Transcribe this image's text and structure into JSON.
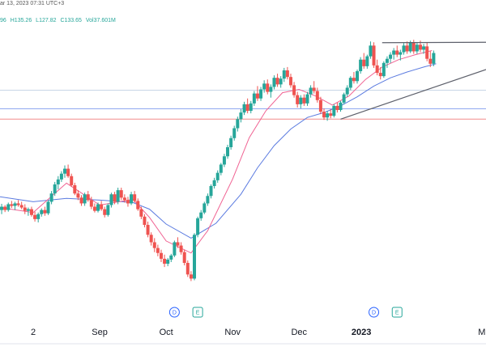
{
  "header": {
    "timestamp": "ar 13, 2023 07:31 UTC+3",
    "ohlc": {
      "open": "96",
      "high": "H135.26",
      "low": "L127.82",
      "close": "C133.65",
      "volume": "Vol37.601M"
    }
  },
  "colors": {
    "up": "#26a69a",
    "down": "#ef5350",
    "ma_fast": "#f06292",
    "ma_slow": "#5b7be0",
    "h_line_blue": "#90a8f0",
    "h_line_red": "#f28b8b",
    "h_line_light": "#c8d6e6",
    "trendline": "#5d606b",
    "event_blue": "#2962ff",
    "event_green": "#26a69a"
  },
  "chart_data": {
    "type": "candlestick",
    "x_labels": [
      "2",
      "Sep",
      "Oct",
      "Nov",
      "Dec",
      "2023",
      "M"
    ],
    "x_label_bold_index": 5,
    "x_label_positions": [
      0.4,
      1.2,
      2.0,
      2.8,
      3.6,
      4.35,
      5.8
    ],
    "y_range": [
      75,
      140
    ],
    "horizontal_lines": [
      {
        "value": 126.0,
        "color_key": "h_line_light"
      },
      {
        "value": 121.5,
        "color_key": "h_line_blue"
      },
      {
        "value": 119.0,
        "color_key": "h_line_red"
      }
    ],
    "trendlines": [
      {
        "from": [
          4.6,
          137.5
        ],
        "to": [
          5.85,
          137.6
        ]
      },
      {
        "from": [
          4.1,
          119.0
        ],
        "to": [
          5.85,
          131.0
        ]
      }
    ],
    "events": [
      {
        "x": 2.1,
        "label": "D",
        "color_key": "event_blue"
      },
      {
        "x": 2.38,
        "label": "E",
        "color_key": "event_green"
      },
      {
        "x": 4.5,
        "label": "D",
        "color_key": "event_blue"
      },
      {
        "x": 4.78,
        "label": "E",
        "color_key": "event_green"
      }
    ],
    "candles": [
      [
        0.02,
        97,
        98.5,
        96,
        97.8
      ],
      [
        0.06,
        97.8,
        98.2,
        96.5,
        97
      ],
      [
        0.1,
        97,
        98.8,
        96.6,
        98.4
      ],
      [
        0.14,
        98.4,
        99.2,
        97.5,
        98
      ],
      [
        0.18,
        98,
        99,
        97,
        98.6
      ],
      [
        0.22,
        98.6,
        99.4,
        97.8,
        98.2
      ],
      [
        0.26,
        98.2,
        99,
        97.2,
        97.6
      ],
      [
        0.3,
        97.6,
        98.4,
        96,
        96.8
      ],
      [
        0.34,
        96.8,
        97.6,
        95.6,
        97.2
      ],
      [
        0.38,
        97.2,
        97.8,
        95.4,
        95.8
      ],
      [
        0.42,
        95.8,
        96.6,
        94.2,
        94.8
      ],
      [
        0.46,
        94.8,
        96.4,
        94,
        96
      ],
      [
        0.5,
        96,
        97.4,
        95.4,
        97
      ],
      [
        0.54,
        97,
        97.8,
        95.6,
        96.2
      ],
      [
        0.58,
        96.2,
        99.4,
        95.8,
        99
      ],
      [
        0.62,
        99,
        101.6,
        98.4,
        101
      ],
      [
        0.66,
        101,
        103.8,
        100.4,
        103.2
      ],
      [
        0.7,
        103.2,
        105.2,
        102,
        104.4
      ],
      [
        0.74,
        104.4,
        106.4,
        103.8,
        105.8
      ],
      [
        0.78,
        105.8,
        107.8,
        104.8,
        107
      ],
      [
        0.82,
        107,
        108,
        104.8,
        105.2
      ],
      [
        0.86,
        105.2,
        105.8,
        102.6,
        103
      ],
      [
        0.9,
        103,
        103.6,
        100.6,
        101
      ],
      [
        0.94,
        101,
        101.8,
        99.4,
        100
      ],
      [
        0.98,
        100,
        100.6,
        98,
        98.6
      ],
      [
        1.02,
        98.6,
        101.2,
        98,
        100.8
      ],
      [
        1.06,
        100.8,
        101.6,
        99,
        99.4
      ],
      [
        1.1,
        99.4,
        100.2,
        97.2,
        97.8
      ],
      [
        1.14,
        97.8,
        98.6,
        96.4,
        96.8
      ],
      [
        1.18,
        96.8,
        98.8,
        96.4,
        98.4
      ],
      [
        1.22,
        98.4,
        99.2,
        96.8,
        97.2
      ],
      [
        1.26,
        97.2,
        97.8,
        95.2,
        95.8
      ],
      [
        1.3,
        95.8,
        98.6,
        95.4,
        98.2
      ],
      [
        1.34,
        98.2,
        101.2,
        97.6,
        100.8
      ],
      [
        1.38,
        100.8,
        101.4,
        98.4,
        99
      ],
      [
        1.42,
        99,
        102.4,
        98.4,
        101.8
      ],
      [
        1.46,
        101.8,
        102.4,
        99.4,
        100
      ],
      [
        1.5,
        100,
        100.8,
        98.8,
        99.4
      ],
      [
        1.54,
        99.4,
        100.2,
        97.8,
        98.6
      ],
      [
        1.58,
        98.6,
        101.4,
        98.2,
        100.8
      ],
      [
        1.62,
        100.8,
        101.6,
        98.8,
        99.2
      ],
      [
        1.66,
        99.2,
        99.8,
        96.8,
        97.2
      ],
      [
        1.7,
        97.2,
        97.8,
        94.8,
        95.4
      ],
      [
        1.74,
        95.4,
        96,
        92.8,
        93.4
      ],
      [
        1.78,
        93.4,
        94.2,
        90.4,
        91
      ],
      [
        1.82,
        91,
        91.6,
        88.4,
        89.2
      ],
      [
        1.86,
        89.2,
        90.2,
        86.8,
        87.8
      ],
      [
        1.9,
        87.8,
        88.6,
        85.8,
        86.6
      ],
      [
        1.94,
        86.6,
        87.4,
        84.4,
        85.2
      ],
      [
        1.98,
        85.2,
        86.2,
        83.2,
        84
      ],
      [
        2.02,
        84,
        85.4,
        83.4,
        85
      ],
      [
        2.06,
        85,
        86.4,
        84.4,
        86
      ],
      [
        2.1,
        86,
        89.6,
        85.6,
        89.2
      ],
      [
        2.14,
        89.2,
        90.4,
        87.8,
        88.4
      ],
      [
        2.18,
        88.4,
        89.2,
        86.2,
        86.8
      ],
      [
        2.22,
        86.8,
        87.4,
        83.6,
        84.2
      ],
      [
        2.26,
        84.2,
        84.8,
        80.8,
        81.4
      ],
      [
        2.3,
        81.4,
        82.2,
        79.8,
        80.4
      ],
      [
        2.34,
        80.4,
        91.4,
        80,
        91
      ]
    ],
    "candles_2": [
      [
        2.38,
        91,
        95.4,
        90.4,
        95
      ],
      [
        2.42,
        95,
        97,
        94.4,
        96.4
      ],
      [
        2.46,
        96.4,
        99,
        96,
        98.6
      ],
      [
        2.5,
        98.6,
        101,
        98,
        100.4
      ],
      [
        2.54,
        100.4,
        103.2,
        99.8,
        102.8
      ],
      [
        2.58,
        102.8,
        104.8,
        102.2,
        104.2
      ],
      [
        2.62,
        104.2,
        106.6,
        103.6,
        106
      ],
      [
        2.66,
        106,
        108.4,
        105.4,
        108
      ],
      [
        2.7,
        108,
        110.6,
        107.4,
        110
      ],
      [
        2.74,
        110,
        112.8,
        109.4,
        112.2
      ],
      [
        2.78,
        112.2,
        115,
        111.6,
        114.4
      ],
      [
        2.82,
        114.4,
        117.4,
        113.8,
        116.8
      ],
      [
        2.86,
        116.8,
        119.6,
        116,
        119
      ],
      [
        2.9,
        119,
        121.4,
        118.2,
        120.6
      ],
      [
        2.94,
        120.6,
        123.2,
        120,
        122.6
      ],
      [
        2.98,
        122.6,
        124,
        120.4,
        121
      ],
      [
        3.02,
        121,
        123.4,
        120.4,
        122.8
      ],
      [
        3.06,
        122.8,
        125.8,
        122.2,
        125.2
      ],
      [
        3.1,
        125.2,
        127,
        123.4,
        124
      ],
      [
        3.14,
        124,
        126.8,
        123.4,
        126.2
      ],
      [
        3.18,
        126.2,
        128.4,
        125.4,
        127.6
      ],
      [
        3.22,
        127.6,
        128.6,
        125,
        125.6
      ],
      [
        3.26,
        125.6,
        127.4,
        124.2,
        126.8
      ],
      [
        3.3,
        126.8,
        129.6,
        126.2,
        129
      ],
      [
        3.34,
        129,
        130,
        126.8,
        127.4
      ],
      [
        3.38,
        127.4,
        129.4,
        126.6,
        128.8
      ],
      [
        3.42,
        128.8,
        131.4,
        128,
        130.8
      ],
      [
        3.46,
        130.8,
        131.6,
        128.6,
        129.2
      ],
      [
        3.5,
        129.2,
        130,
        126.6,
        127.2
      ],
      [
        3.54,
        127.2,
        128,
        124.2,
        124.8
      ],
      [
        3.58,
        124.8,
        125.6,
        121.8,
        122.6
      ],
      [
        3.62,
        122.6,
        124.8,
        121.6,
        124.2
      ],
      [
        3.66,
        124.2,
        125,
        122.2,
        122.8
      ],
      [
        3.7,
        122.8,
        125.6,
        122.2,
        125
      ],
      [
        3.74,
        125,
        127.2,
        124.2,
        126.6
      ],
      [
        3.78,
        126.6,
        128.2,
        125.2,
        125.8
      ],
      [
        3.82,
        125.8,
        126.6,
        123,
        123.6
      ],
      [
        3.86,
        123.6,
        124.4,
        120.2,
        120.8
      ],
      [
        3.9,
        120.8,
        121.6,
        118.8,
        119.4
      ],
      [
        3.94,
        119.4,
        121,
        118.6,
        120.4
      ],
      [
        3.98,
        120.4,
        121.4,
        119.2,
        119.8
      ],
      [
        4.02,
        119.8,
        122.6,
        119.4,
        122.2
      ],
      [
        4.06,
        122.2,
        123,
        120.6,
        121.2
      ],
      [
        4.1,
        121.2,
        123.4,
        120.8,
        123
      ]
    ],
    "candles_3": [
      [
        4.14,
        123,
        125.4,
        122.6,
        125
      ],
      [
        4.18,
        125,
        127.2,
        124.4,
        126.6
      ],
      [
        4.22,
        126.6,
        129.4,
        126,
        129
      ],
      [
        4.26,
        129,
        130.4,
        127.6,
        128.2
      ],
      [
        4.3,
        128.2,
        131,
        127.6,
        130.6
      ],
      [
        4.34,
        130.6,
        134,
        130,
        133.4
      ],
      [
        4.38,
        133.4,
        135,
        131.2,
        131.8
      ],
      [
        4.42,
        131.8,
        134.6,
        131.2,
        134.2
      ],
      [
        4.46,
        134.2,
        137.8,
        133.6,
        136.8
      ],
      [
        4.5,
        136.8,
        137.6,
        131.4,
        132
      ],
      [
        4.54,
        132,
        133.4,
        129.6,
        130.2
      ],
      [
        4.58,
        130.2,
        131.6,
        128.6,
        129.4
      ],
      [
        4.62,
        129.4,
        133,
        129,
        132.6
      ],
      [
        4.66,
        132.6,
        134.2,
        131.4,
        133.6
      ],
      [
        4.7,
        133.6,
        135.2,
        132.6,
        134.6
      ],
      [
        4.74,
        134.6,
        136.2,
        133.4,
        135.6
      ],
      [
        4.78,
        135.6,
        136.8,
        134,
        134.6
      ],
      [
        4.82,
        134.6,
        135.8,
        133.2,
        135.2
      ],
      [
        4.86,
        135.2,
        137.4,
        134.6,
        136.8
      ],
      [
        4.9,
        136.8,
        137.8,
        134.8,
        135.4
      ],
      [
        4.94,
        135.4,
        138,
        135,
        137.6
      ],
      [
        4.98,
        137.6,
        138.2,
        134.8,
        135.4
      ],
      [
        5.02,
        135.4,
        137.6,
        134.8,
        137
      ],
      [
        5.06,
        137,
        138,
        135.2,
        135.8
      ],
      [
        5.1,
        135.8,
        137.2,
        134.8,
        136.6
      ],
      [
        5.14,
        136.6,
        137.6,
        133,
        133.6
      ],
      [
        5.18,
        133.6,
        135.4,
        131.6,
        132.4
      ],
      [
        5.22,
        132.4,
        135.6,
        131.8,
        135
      ]
    ],
    "ma_fast": [
      [
        0.0,
        97.6
      ],
      [
        0.4,
        96.4
      ],
      [
        0.8,
        103.5
      ],
      [
        1.2,
        98.2
      ],
      [
        1.6,
        99.6
      ],
      [
        1.8,
        95.2
      ],
      [
        2.0,
        89.5
      ],
      [
        2.3,
        86.6
      ],
      [
        2.5,
        92
      ],
      [
        2.8,
        104.5
      ],
      [
        3.0,
        114.5
      ],
      [
        3.2,
        121
      ],
      [
        3.4,
        125.4
      ],
      [
        3.6,
        126.2
      ],
      [
        3.8,
        124.6
      ],
      [
        4.0,
        122.4
      ],
      [
        4.2,
        124.6
      ],
      [
        4.4,
        128.6
      ],
      [
        4.6,
        131.6
      ],
      [
        4.8,
        133.4
      ],
      [
        5.0,
        134.6
      ],
      [
        5.2,
        135.6
      ]
    ],
    "ma_slow": [
      [
        0.0,
        100.2
      ],
      [
        0.4,
        99
      ],
      [
        0.8,
        99.8
      ],
      [
        1.2,
        99.4
      ],
      [
        1.6,
        98.8
      ],
      [
        1.8,
        97.2
      ],
      [
        2.0,
        93.6
      ],
      [
        2.3,
        90.2
      ],
      [
        2.6,
        93.8
      ],
      [
        2.9,
        100.8
      ],
      [
        3.1,
        107.2
      ],
      [
        3.3,
        112.6
      ],
      [
        3.5,
        116.6
      ],
      [
        3.7,
        119.4
      ],
      [
        3.9,
        120.6
      ],
      [
        4.1,
        122.2
      ],
      [
        4.3,
        124.4
      ],
      [
        4.5,
        127
      ],
      [
        4.7,
        129
      ],
      [
        4.9,
        130.4
      ],
      [
        5.1,
        131.6
      ],
      [
        5.25,
        132.4
      ]
    ]
  }
}
